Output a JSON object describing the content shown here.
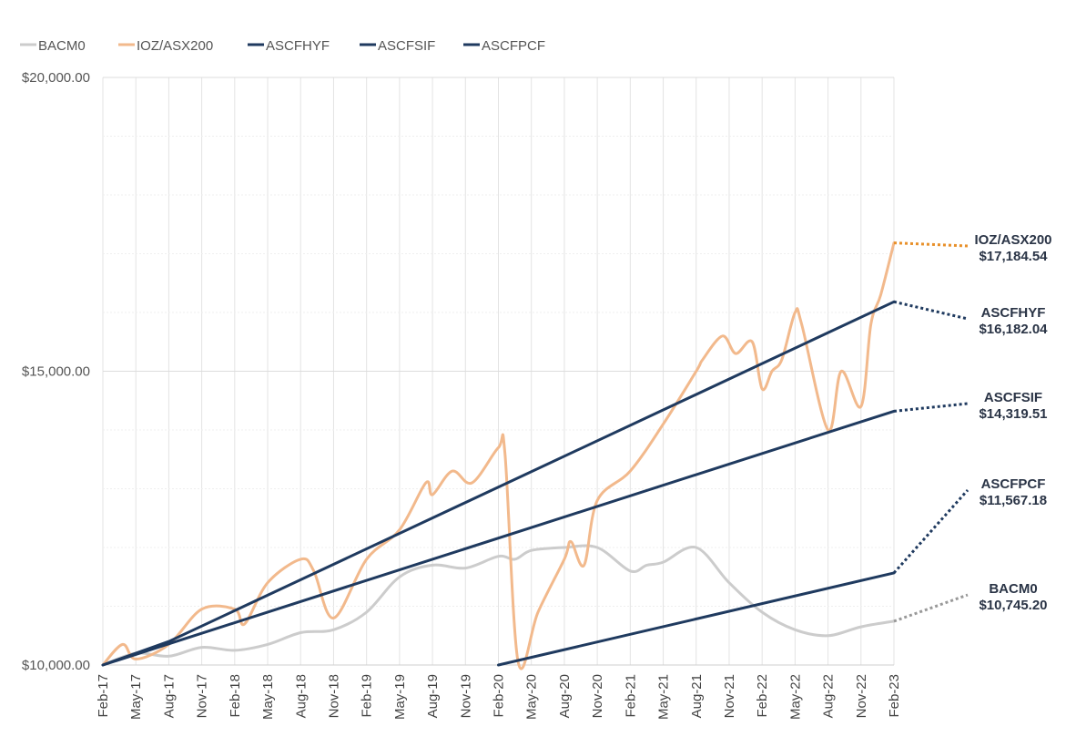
{
  "chart_data": {
    "type": "line",
    "ylim": [
      10000,
      20000
    ],
    "y_ticks": [
      "$20,000.00",
      "$15,000.00",
      "$10,000.00"
    ],
    "x_ticks": [
      "Feb-17",
      "May-17",
      "Aug-17",
      "Nov-17",
      "Feb-18",
      "May-18",
      "Aug-18",
      "Nov-18",
      "Feb-19",
      "May-19",
      "Aug-19",
      "Nov-19",
      "Feb-20",
      "May-20",
      "Aug-20",
      "Nov-20",
      "Feb-21",
      "May-21",
      "Aug-21",
      "Nov-21",
      "Feb-22",
      "May-22",
      "Aug-22",
      "Nov-22",
      "Feb-23"
    ],
    "grid": true,
    "legend_position": "top-left",
    "series": [
      {
        "name": "BACM0",
        "color": "#cccccc",
        "x": [
          0,
          1,
          2,
          3,
          4,
          5,
          6,
          7,
          8,
          9,
          10,
          11,
          12,
          12.5,
          13,
          14,
          15,
          16,
          16.5,
          17,
          18,
          19,
          20,
          21,
          22,
          23,
          24
        ],
        "values": [
          10000,
          10200,
          10150,
          10300,
          10250,
          10350,
          10550,
          10600,
          10900,
          11500,
          11700,
          11650,
          11850,
          11800,
          11950,
          12000,
          12000,
          11600,
          11700,
          11750,
          12000,
          11400,
          10900,
          10600,
          10500,
          10650,
          10745.2
        ]
      },
      {
        "name": "IOZ/ASX200",
        "color": "#f2b98c",
        "x": [
          0,
          0.6,
          1,
          2,
          3,
          4,
          4.3,
          5,
          6,
          6.4,
          7,
          8,
          9,
          9.8,
          10,
          10.6,
          11.2,
          12,
          12.2,
          12.6,
          13.2,
          14,
          14.2,
          14.6,
          15,
          16,
          17,
          18,
          18.2,
          18.8,
          19.2,
          19.7,
          20,
          20.3,
          20.6,
          21,
          21.2,
          22,
          22.4,
          23,
          23.3,
          23.6,
          24
        ],
        "values": [
          10000,
          10350,
          10100,
          10350,
          10950,
          10950,
          10700,
          11400,
          11800,
          11600,
          10800,
          11800,
          12300,
          13100,
          12900,
          13300,
          13100,
          13700,
          13600,
          10050,
          10900,
          11800,
          12100,
          11700,
          12800,
          13300,
          14100,
          15000,
          15200,
          15600,
          15300,
          15500,
          14700,
          15000,
          15200,
          16000,
          15800,
          14000,
          15000,
          14400,
          15800,
          16300,
          17184.54
        ]
      },
      {
        "name": "ASCFHYF",
        "color": "#1f3a5f",
        "x": [
          0,
          2,
          24
        ],
        "values": [
          10000,
          10400,
          16182.04
        ]
      },
      {
        "name": "ASCFSIF",
        "color": "#1f3a5f",
        "x": [
          0,
          24
        ],
        "values": [
          10000,
          14319.51
        ]
      },
      {
        "name": "ASCFPCF",
        "color": "#1f3a5f",
        "x": [
          12,
          24
        ],
        "values": [
          10000,
          11567.18
        ]
      }
    ],
    "annotations": [
      {
        "series": "IOZ/ASX200",
        "label": "IOZ/ASX200",
        "value": "$17,184.54",
        "color": "#e8902a"
      },
      {
        "series": "ASCFHYF",
        "label": "ASCFHYF",
        "value": "$16,182.04",
        "color": "#1f3a5f"
      },
      {
        "series": "ASCFSIF",
        "label": "ASCFSIF",
        "value": "$14,319.51",
        "color": "#1f3a5f"
      },
      {
        "series": "ASCFPCF",
        "label": "ASCFPCF",
        "value": "$11,567.18",
        "color": "#1f3a5f"
      },
      {
        "series": "BACM0",
        "label": "BACM0",
        "value": "$10,745.20",
        "color": "#999999"
      }
    ]
  }
}
